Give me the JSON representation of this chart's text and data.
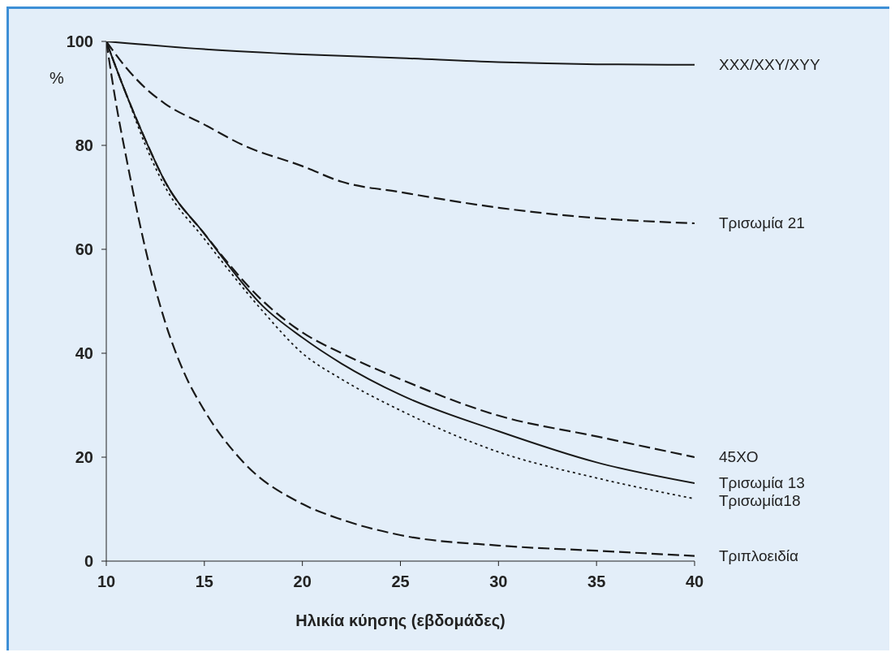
{
  "chart_data": {
    "type": "line",
    "xlabel": "Ηλικία κύησης (εβδομάδες)",
    "ylabel": "%",
    "xlim": [
      10,
      40
    ],
    "ylim": [
      0,
      100
    ],
    "xticks": [
      10,
      15,
      20,
      25,
      30,
      35,
      40
    ],
    "yticks": [
      0,
      20,
      40,
      60,
      80,
      100
    ],
    "marker": "none",
    "series": [
      {
        "name": "XXX/XXY/XYY",
        "color": "#1a1a1a",
        "line_style": "solid",
        "x": [
          10,
          15,
          20,
          25,
          30,
          35,
          40
        ],
        "values": [
          100,
          98.5,
          97.5,
          96.8,
          96,
          95.6,
          95.5
        ]
      },
      {
        "name": "Τρισωμία 21",
        "color": "#1a1a1a",
        "line_style": "dashed",
        "x": [
          10,
          11,
          12,
          13,
          15,
          17,
          20,
          22,
          25,
          30,
          35,
          40
        ],
        "values": [
          100,
          95,
          91,
          88,
          84,
          80,
          76,
          73,
          71,
          68,
          66,
          65
        ]
      },
      {
        "name": "45XO",
        "color": "#1a1a1a",
        "line_style": "dashed",
        "x": [
          10,
          11,
          12,
          13,
          15,
          18,
          20,
          22,
          25,
          30,
          35,
          40
        ],
        "values": [
          100,
          90,
          81,
          73,
          63,
          50,
          44,
          40,
          35,
          28,
          24,
          20
        ]
      },
      {
        "name": "Τρισωμία 13",
        "color": "#1a1a1a",
        "line_style": "solid",
        "x": [
          10,
          11,
          12,
          13,
          15,
          18,
          20,
          22,
          25,
          30,
          35,
          40
        ],
        "values": [
          100,
          90,
          81,
          73,
          63,
          49,
          43,
          38,
          32,
          25,
          19,
          15
        ]
      },
      {
        "name": "Τρισωμία18",
        "color": "#1a1a1a",
        "line_style": "dotted",
        "x": [
          10,
          11,
          12,
          13,
          15,
          18,
          20,
          22,
          25,
          30,
          35,
          40
        ],
        "values": [
          100,
          90,
          80,
          72,
          62,
          48,
          40,
          35,
          29,
          21,
          16,
          12
        ]
      },
      {
        "name": "Τριπλοειδία",
        "color": "#1a1a1a",
        "line_style": "dashed",
        "x": [
          10,
          10.5,
          11,
          12,
          13,
          14,
          15,
          17,
          20,
          22,
          25,
          30,
          35,
          40
        ],
        "values": [
          100,
          88,
          78,
          60,
          46,
          36,
          29,
          19,
          11,
          8,
          5,
          3,
          2,
          1
        ]
      }
    ]
  }
}
